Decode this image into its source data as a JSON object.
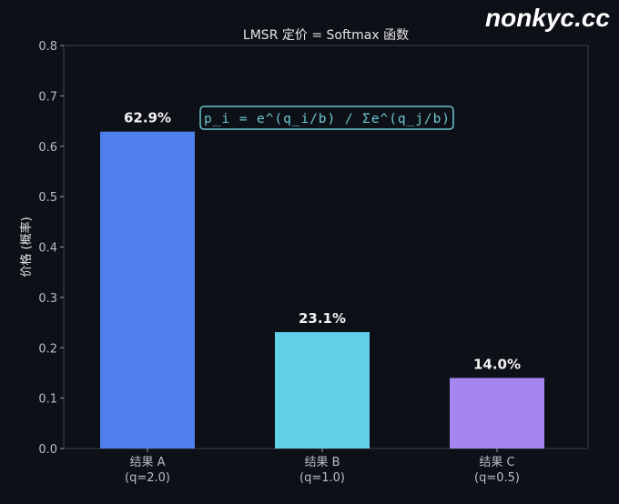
{
  "chart_data": {
    "type": "bar",
    "title": "LMSR 定价 = Softmax 函数",
    "ylabel": "价格 (概率)",
    "xlabel": "",
    "ylim": [
      0,
      0.8
    ],
    "yticks": [
      "0.0",
      "0.1",
      "0.2",
      "0.3",
      "0.4",
      "0.5",
      "0.6",
      "0.7",
      "0.8"
    ],
    "categories": [
      [
        "结果 A",
        "(q=2.0)"
      ],
      [
        "结果 B",
        "(q=1.0)"
      ],
      [
        "结果 C",
        "(q=0.5)"
      ]
    ],
    "values": [
      0.629,
      0.231,
      0.14
    ],
    "data_labels": [
      "62.9%",
      "23.1%",
      "14.0%"
    ],
    "colors": [
      "#4f7fea",
      "#62cfe8",
      "#a586ef"
    ],
    "annotation": "p_i = e^(q_i/b) / Σe^(q_j/b)",
    "annotation_color": "#6cc6d2",
    "grid": false
  },
  "watermark": "nonkyc.cc"
}
